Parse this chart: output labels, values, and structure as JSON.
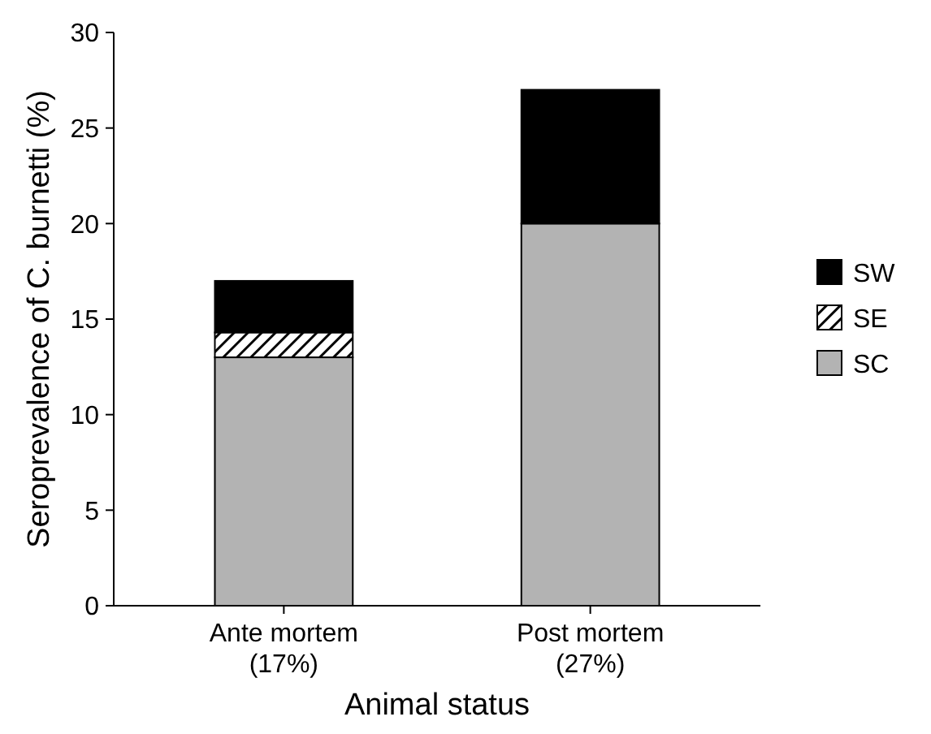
{
  "chart_data": {
    "type": "bar",
    "stacked": true,
    "xlabel": "Animal status",
    "ylabel": "Seroprevalence of C. burnetti (%)",
    "categories": [
      "Ante mortem\n(17%)",
      "Post mortem\n(27%)"
    ],
    "series": [
      {
        "name": "SC",
        "color": "#b3b3b3",
        "values": [
          13,
          20
        ]
      },
      {
        "name": "SE",
        "color": "#000000",
        "values": [
          1.3,
          0
        ]
      },
      {
        "name": "SW",
        "color": "#000000",
        "values": [
          2.7,
          7
        ]
      }
    ],
    "ylim": [
      0,
      30
    ],
    "yticks": [
      0,
      5,
      10,
      15,
      20,
      25,
      30
    ],
    "legend": "right",
    "grid": false
  }
}
